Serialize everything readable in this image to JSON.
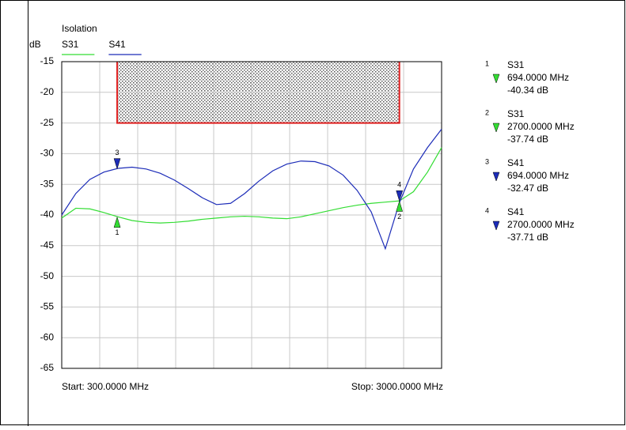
{
  "chart_data": {
    "type": "line",
    "title": "Isolation",
    "y_label": "dB",
    "start_label": "Start: 300.0000 MHz",
    "stop_label": "Stop: 3000.0000 MHz",
    "xlim": [
      300,
      3000
    ],
    "xticks": [
      300,
      570,
      840,
      1110,
      1380,
      1650,
      1920,
      2190,
      2460,
      2730,
      3000
    ],
    "ylim": [
      -65,
      -15
    ],
    "yticks": [
      -15,
      -20,
      -25,
      -30,
      -35,
      -40,
      -45,
      -50,
      -55,
      -60,
      -65
    ],
    "grid": true,
    "x": [
      300,
      400,
      500,
      600,
      700,
      800,
      900,
      1000,
      1100,
      1200,
      1300,
      1400,
      1500,
      1600,
      1700,
      1800,
      1900,
      2000,
      2100,
      2200,
      2300,
      2400,
      2500,
      2600,
      2700,
      2800,
      2900,
      3000
    ],
    "series": [
      {
        "name": "S31",
        "color": "#33dd33",
        "values": [
          -40.5,
          -38.9,
          -39.0,
          -39.6,
          -40.3,
          -40.9,
          -41.2,
          -41.3,
          -41.2,
          -41.0,
          -40.7,
          -40.5,
          -40.3,
          -40.2,
          -40.3,
          -40.5,
          -40.6,
          -40.3,
          -39.8,
          -39.3,
          -38.8,
          -38.4,
          -38.1,
          -37.9,
          -37.7,
          -36.2,
          -33.0,
          -29.0
        ]
      },
      {
        "name": "S41",
        "color": "#1c2cb8",
        "values": [
          -40.0,
          -36.5,
          -34.2,
          -33.0,
          -32.4,
          -32.2,
          -32.5,
          -33.2,
          -34.3,
          -35.7,
          -37.2,
          -38.3,
          -38.1,
          -36.5,
          -34.5,
          -32.8,
          -31.7,
          -31.2,
          -31.3,
          -32.0,
          -33.5,
          -36.0,
          -39.5,
          -45.5,
          -38.0,
          -32.5,
          -29.0,
          -26.0
        ]
      }
    ],
    "limit_box": {
      "xlim": [
        694,
        2700
      ],
      "ylim": [
        -25,
        -15
      ],
      "color": "#e02020"
    },
    "markers": [
      {
        "label": "1",
        "trace": "S31",
        "series": 0,
        "side": "below",
        "x": 694,
        "x_label": "694.0000 MHz",
        "value": -40.34,
        "value_label": "-40.34 dB"
      },
      {
        "label": "2",
        "trace": "S31",
        "series": 0,
        "side": "below",
        "x": 2700,
        "x_label": "2700.0000 MHz",
        "value": -37.74,
        "value_label": "-37.74 dB"
      },
      {
        "label": "3",
        "trace": "S41",
        "series": 1,
        "side": "above",
        "x": 694,
        "x_label": "694.0000 MHz",
        "value": -32.47,
        "value_label": "-32.47 dB"
      },
      {
        "label": "4",
        "trace": "S41",
        "series": 1,
        "side": "above",
        "x": 2700,
        "x_label": "2700.0000 MHz",
        "value": -37.71,
        "value_label": "-37.71 dB"
      }
    ]
  }
}
